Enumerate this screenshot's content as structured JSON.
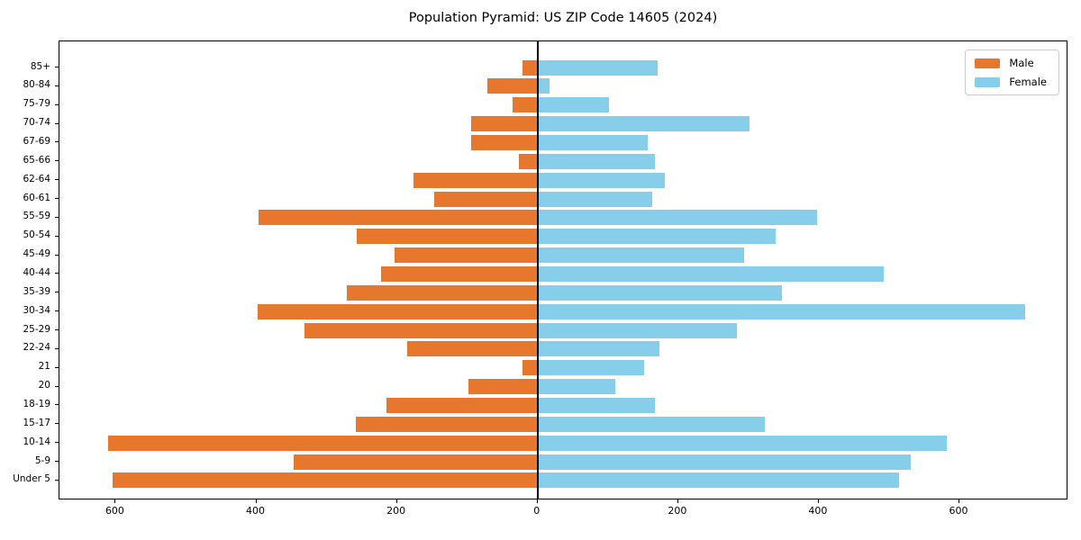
{
  "title": "Population Pyramid: US ZIP Code 14605 (2024)",
  "legend": {
    "male": "Male",
    "female": "Female"
  },
  "colors": {
    "male": "#e8772e",
    "female": "#87ceeb",
    "zero_line": "#000000",
    "spine": "#000000",
    "legend_border": "#cccccc"
  },
  "chart_data": {
    "type": "bar",
    "subtype": "population-pyramid",
    "title": "Population Pyramid: US ZIP Code 14605 (2024)",
    "xlabel": "",
    "ylabel": "",
    "grid": false,
    "legend_position": "upper right",
    "categories_top_to_bottom": [
      "85+",
      "80-84",
      "75-79",
      "70-74",
      "67-69",
      "65-66",
      "62-64",
      "60-61",
      "55-59",
      "50-54",
      "45-49",
      "40-44",
      "35-39",
      "30-34",
      "25-29",
      "22-24",
      "21",
      "20",
      "18-19",
      "15-17",
      "10-14",
      "5-9",
      "Under 5"
    ],
    "series": [
      {
        "name": "Male",
        "side": "left",
        "color": "#e8772e",
        "values": [
          21,
          71,
          35,
          94,
          94,
          27,
          177,
          147,
          397,
          257,
          204,
          222,
          271,
          398,
          331,
          185,
          21,
          98,
          215,
          258,
          611,
          347,
          605
        ]
      },
      {
        "name": "Female",
        "side": "right",
        "color": "#87ceeb",
        "values": [
          171,
          17,
          102,
          302,
          157,
          167,
          181,
          163,
          397,
          339,
          294,
          493,
          347,
          694,
          284,
          173,
          152,
          111,
          167,
          323,
          582,
          531,
          514
        ]
      }
    ],
    "x_ticks": [
      {
        "value": -600,
        "label": "600"
      },
      {
        "value": -400,
        "label": "400"
      },
      {
        "value": -200,
        "label": "200"
      },
      {
        "value": 0,
        "label": "0"
      },
      {
        "value": 200,
        "label": "200"
      },
      {
        "value": 400,
        "label": "400"
      },
      {
        "value": 600,
        "label": "600"
      }
    ],
    "xlim": [
      -680,
      755
    ]
  }
}
